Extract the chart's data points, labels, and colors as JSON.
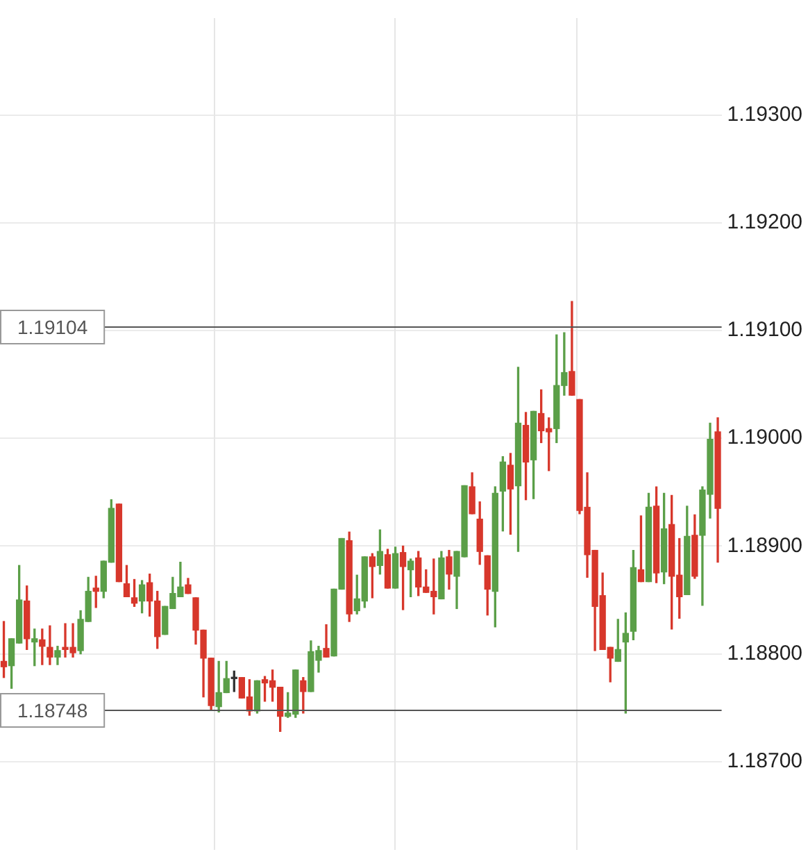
{
  "chart_data": {
    "type": "candlestick",
    "categories": [
      null,
      null,
      null,
      null,
      null,
      null,
      null,
      null,
      null,
      null,
      null,
      null,
      null,
      null,
      null,
      null,
      null,
      null,
      null,
      null,
      null,
      null,
      null,
      null,
      null,
      null,
      null,
      null,
      null,
      null,
      null,
      null,
      null,
      null,
      null,
      null,
      null,
      null,
      null,
      null,
      null,
      null,
      null,
      null,
      null,
      null,
      null,
      null,
      null,
      null,
      null,
      null,
      null,
      null,
      null,
      null,
      null,
      null,
      null,
      null,
      null,
      null,
      null,
      null,
      null,
      null,
      null,
      null,
      null,
      null,
      null,
      null,
      null,
      null,
      null,
      null,
      null,
      null,
      null,
      null,
      null,
      null,
      null,
      null,
      null,
      null,
      null,
      null,
      null,
      null,
      null,
      null,
      null,
      null
    ],
    "ohlc": [
      [
        1.18793,
        1.1883,
        1.18778,
        1.18788
      ],
      [
        1.18789,
        1.18814,
        1.18768,
        1.18814
      ],
      [
        1.1881,
        1.18882,
        1.1881,
        1.1885
      ],
      [
        1.18849,
        1.18863,
        1.18804,
        1.18814
      ],
      [
        1.18811,
        1.18823,
        1.18789,
        1.18814
      ],
      [
        1.18813,
        1.18823,
        1.1879,
        1.18807
      ],
      [
        1.18806,
        1.18826,
        1.1879,
        1.18797
      ],
      [
        1.18797,
        1.18807,
        1.1879,
        1.18803
      ],
      [
        1.18806,
        1.18828,
        1.18797,
        1.18804
      ],
      [
        1.18806,
        1.18828,
        1.18797,
        1.18801
      ],
      [
        1.18803,
        1.1884,
        1.188,
        1.18832
      ],
      [
        1.1883,
        1.18871,
        1.1883,
        1.18858
      ],
      [
        1.18861,
        1.18872,
        1.18843,
        1.18858
      ],
      [
        1.18858,
        1.18886,
        1.18852,
        1.18886
      ],
      [
        1.18885,
        1.18943,
        1.18885,
        1.18935
      ],
      [
        1.18939,
        1.18939,
        1.18867,
        1.18867
      ],
      [
        1.18865,
        1.18882,
        1.18853,
        1.18853
      ],
      [
        1.18852,
        1.18869,
        1.18844,
        1.18847
      ],
      [
        1.18849,
        1.18868,
        1.18838,
        1.18864
      ],
      [
        1.18866,
        1.18874,
        1.18835,
        1.18849
      ],
      [
        1.18849,
        1.18858,
        1.18805,
        1.18816
      ],
      [
        1.18818,
        1.18844,
        1.18818,
        1.18844
      ],
      [
        1.18842,
        1.18871,
        1.18842,
        1.18856
      ],
      [
        1.18853,
        1.18885,
        1.18853,
        1.18862
      ],
      [
        1.18864,
        1.1887,
        1.18856,
        1.18856
      ],
      [
        1.18852,
        1.18852,
        1.18809,
        1.18822
      ],
      [
        1.18822,
        1.18822,
        1.1876,
        1.18796
      ],
      [
        1.18796,
        1.18796,
        1.18748,
        1.18752
      ],
      [
        1.18751,
        1.18793,
        1.18746,
        1.18764
      ],
      [
        1.18764,
        1.18793,
        1.18764,
        1.18777
      ],
      [
        1.18777,
        1.18784,
        1.18765,
        1.18777
      ],
      [
        1.18778,
        1.18778,
        1.18759,
        1.18759
      ],
      [
        1.1876,
        1.18776,
        1.18743,
        1.18747
      ],
      [
        1.18747,
        1.18775,
        1.18745,
        1.18775
      ],
      [
        1.18776,
        1.18779,
        1.18756,
        1.18773
      ],
      [
        1.18775,
        1.18785,
        1.18756,
        1.18769
      ],
      [
        1.18769,
        1.18769,
        1.18728,
        1.18742
      ],
      [
        1.18742,
        1.18764,
        1.18741,
        1.18745
      ],
      [
        1.18744,
        1.18785,
        1.18741,
        1.18785
      ],
      [
        1.18775,
        1.18778,
        1.18745,
        1.18765
      ],
      [
        1.18765,
        1.18812,
        1.18765,
        1.18802
      ],
      [
        1.18794,
        1.18807,
        1.18783,
        1.18803
      ],
      [
        1.18805,
        1.18827,
        1.18797,
        1.18797
      ],
      [
        1.18798,
        1.1886,
        1.18798,
        1.1886
      ],
      [
        1.1886,
        1.18907,
        1.1886,
        1.18907
      ],
      [
        1.18905,
        1.18913,
        1.1883,
        1.18837
      ],
      [
        1.1884,
        1.18873,
        1.18837,
        1.18851
      ],
      [
        1.18849,
        1.1889,
        1.18843,
        1.1889
      ],
      [
        1.1889,
        1.18893,
        1.18852,
        1.18881
      ],
      [
        1.18882,
        1.18915,
        1.18874,
        1.18895
      ],
      [
        1.18892,
        1.18897,
        1.18861,
        1.18861
      ],
      [
        1.18861,
        1.18899,
        1.18861,
        1.18893
      ],
      [
        1.18894,
        1.189,
        1.18841,
        1.18881
      ],
      [
        1.18878,
        1.18888,
        1.18853,
        1.18886
      ],
      [
        1.18889,
        1.18895,
        1.18854,
        1.18862
      ],
      [
        1.18862,
        1.18878,
        1.18857,
        1.18857
      ],
      [
        1.18858,
        1.18888,
        1.18837,
        1.18853
      ],
      [
        1.18851,
        1.18895,
        1.18851,
        1.18889
      ],
      [
        1.1889,
        1.18896,
        1.1886,
        1.18874
      ],
      [
        1.18872,
        1.18895,
        1.18842,
        1.18895
      ],
      [
        1.1889,
        1.18956,
        1.1889,
        1.18956
      ],
      [
        1.18955,
        1.18968,
        1.1893,
        1.1893
      ],
      [
        1.18925,
        1.18941,
        1.18883,
        1.18895
      ],
      [
        1.18891,
        1.18891,
        1.18836,
        1.1886
      ],
      [
        1.18858,
        1.18955,
        1.18825,
        1.18949
      ],
      [
        1.18951,
        1.18983,
        1.18914,
        1.18978
      ],
      [
        1.18975,
        1.18986,
        1.18911,
        1.18953
      ],
      [
        1.18956,
        1.19066,
        1.18895,
        1.19014
      ],
      [
        1.19012,
        1.19024,
        1.18943,
        1.18978
      ],
      [
        1.1898,
        1.19025,
        1.18944,
        1.19025
      ],
      [
        1.19023,
        1.19045,
        1.18996,
        1.19007
      ],
      [
        1.19009,
        1.19019,
        1.1897,
        1.19006
      ],
      [
        1.19009,
        1.19096,
        1.18996,
        1.19049
      ],
      [
        1.19049,
        1.19098,
        1.1904,
        1.19061
      ],
      [
        1.19062,
        1.19127,
        1.1904,
        1.1904
      ],
      [
        1.19036,
        1.19036,
        1.1893,
        1.18933
      ],
      [
        1.18936,
        1.18968,
        1.18871,
        1.18892
      ],
      [
        1.18896,
        1.18896,
        1.18803,
        1.18844
      ],
      [
        1.18854,
        1.18875,
        1.18804,
        1.18804
      ],
      [
        1.18806,
        1.18806,
        1.18774,
        1.18796
      ],
      [
        1.18793,
        1.18832,
        1.18793,
        1.18804
      ],
      [
        1.18811,
        1.18838,
        1.18745,
        1.18819
      ],
      [
        1.18821,
        1.18896,
        1.18813,
        1.1888
      ],
      [
        1.18878,
        1.18928,
        1.18867,
        1.18867
      ],
      [
        1.18867,
        1.18949,
        1.18867,
        1.18936
      ],
      [
        1.18937,
        1.18955,
        1.18866,
        1.18875
      ],
      [
        1.18876,
        1.18949,
        1.18865,
        1.18916
      ],
      [
        1.1892,
        1.18947,
        1.18823,
        1.18872
      ],
      [
        1.18873,
        1.18907,
        1.18833,
        1.18853
      ],
      [
        1.18855,
        1.18937,
        1.18855,
        1.18909
      ],
      [
        1.1891,
        1.18929,
        1.1887,
        1.18872
      ],
      [
        1.1891,
        1.18955,
        1.18845,
        1.18952
      ],
      [
        1.18948,
        1.19014,
        1.18926,
        1.18999
      ],
      [
        1.19006,
        1.19019,
        1.18885,
        1.18935
      ]
    ],
    "colors": [
      "#d7372b",
      "#5b9f48",
      "#5b9f48",
      "#d7372b",
      "#5b9f48",
      "#d7372b",
      "#d7372b",
      "#5b9f48",
      "#d7372b",
      "#d7372b",
      "#5b9f48",
      "#5b9f48",
      "#d7372b",
      "#5b9f48",
      "#5b9f48",
      "#d7372b",
      "#d7372b",
      "#d7372b",
      "#5b9f48",
      "#d7372b",
      "#d7372b",
      "#5b9f48",
      "#5b9f48",
      "#5b9f48",
      "#d7372b",
      "#d7372b",
      "#d7372b",
      "#d7372b",
      "#5b9f48",
      "#5b9f48",
      "#333333",
      "#d7372b",
      "#d7372b",
      "#5b9f48",
      "#d7372b",
      "#d7372b",
      "#d7372b",
      "#5b9f48",
      "#5b9f48",
      "#d7372b",
      "#5b9f48",
      "#5b9f48",
      "#d7372b",
      "#5b9f48",
      "#5b9f48",
      "#d7372b",
      "#5b9f48",
      "#5b9f48",
      "#d7372b",
      "#5b9f48",
      "#d7372b",
      "#5b9f48",
      "#d7372b",
      "#5b9f48",
      "#d7372b",
      "#d7372b",
      "#d7372b",
      "#5b9f48",
      "#d7372b",
      "#5b9f48",
      "#5b9f48",
      "#d7372b",
      "#d7372b",
      "#d7372b",
      "#5b9f48",
      "#5b9f48",
      "#d7372b",
      "#5b9f48",
      "#d7372b",
      "#5b9f48",
      "#d7372b",
      "#d7372b",
      "#5b9f48",
      "#5b9f48",
      "#d7372b",
      "#d7372b",
      "#d7372b",
      "#d7372b",
      "#d7372b",
      "#d7372b",
      "#5b9f48",
      "#5b9f48",
      "#5b9f48",
      "#d7372b",
      "#5b9f48",
      "#d7372b",
      "#5b9f48",
      "#d7372b",
      "#d7372b",
      "#5b9f48",
      "#d7372b",
      "#5b9f48",
      "#5b9f48",
      "#d7372b"
    ],
    "ylim": [
      1.18618,
      1.1939
    ],
    "yticks": [
      {
        "value": 1.187,
        "label": "1.18700"
      },
      {
        "value": 1.188,
        "label": "1.18800"
      },
      {
        "value": 1.189,
        "label": "1.18900"
      },
      {
        "value": 1.19,
        "label": "1.19000"
      },
      {
        "value": 1.191,
        "label": "1.19100"
      },
      {
        "value": 1.192,
        "label": "1.19200"
      },
      {
        "value": 1.193,
        "label": "1.19300"
      }
    ],
    "grid": true,
    "ref_lines": [
      {
        "axis": "y",
        "value": 1.19104,
        "label": "1.19104"
      },
      {
        "axis": "y",
        "value": 1.18748,
        "label": "1.18748"
      }
    ]
  }
}
